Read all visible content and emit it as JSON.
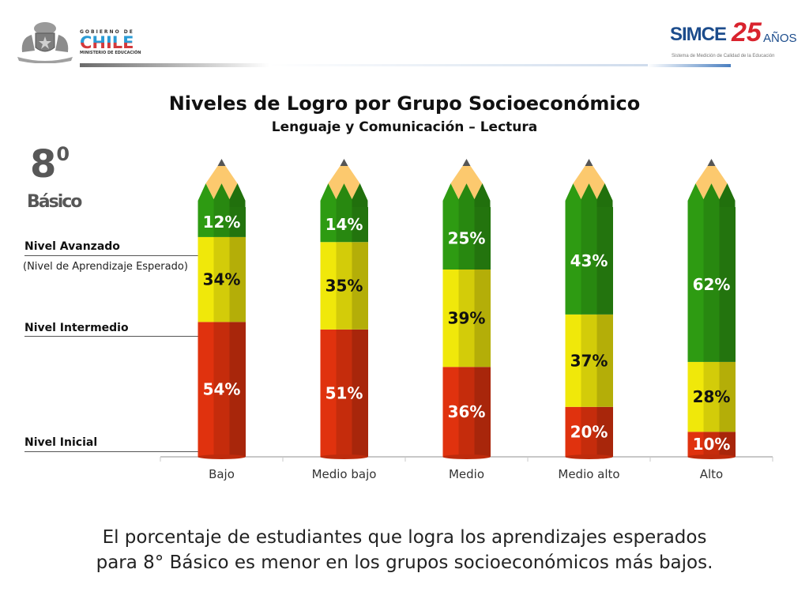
{
  "header": {
    "gov_logo": {
      "line1": "GOBIERNO DE",
      "line2": "CHILE",
      "line3": "MINISTERIO DE EDUCACIÓN",
      "icon": "coat-of-arms-icon"
    },
    "simce_logo": {
      "word": "SIMCE",
      "number": "25",
      "suffix": "AÑOS",
      "tagline": "Sistema de Medición de Calidad de la Educación"
    }
  },
  "grade": {
    "number": "8",
    "superscript": "0",
    "label": "Básico"
  },
  "levels": {
    "advanced": {
      "label": "Nivel Avanzado",
      "note": "(Nivel de Aprendizaje Esperado)"
    },
    "intermediate": {
      "label": "Nivel Intermedio"
    },
    "initial": {
      "label": "Nivel Inicial"
    }
  },
  "caption": {
    "line1": "El porcentaje de estudiantes que logra los aprendizajes esperados",
    "line2": "para 8° Básico es menor en los grupos socioeconómicos más bajos."
  },
  "colors": {
    "inicial": "#e0320e",
    "intermedio": "#f0e80a",
    "avanzado": "#2e9b12",
    "wood": "#fcc96e",
    "lead": "#555555"
  },
  "chart_data": {
    "type": "bar",
    "stacked": true,
    "title": "Niveles de Logro por Grupo Socioeconómico",
    "subtitle": "Lenguaje y Comunicación – Lectura",
    "xlabel": "",
    "ylabel": "",
    "ylim": [
      0,
      100
    ],
    "categories": [
      "Bajo",
      "Medio bajo",
      "Medio",
      "Medio alto",
      "Alto"
    ],
    "series": [
      {
        "name": "Nivel Inicial",
        "values": [
          54,
          51,
          36,
          20,
          10
        ],
        "labels": [
          "54%",
          "51%",
          "36%",
          "20%",
          "10%"
        ]
      },
      {
        "name": "Nivel Intermedio",
        "values": [
          34,
          35,
          39,
          37,
          28
        ],
        "labels": [
          "34%",
          "35%",
          "39%",
          "37%",
          "28%"
        ]
      },
      {
        "name": "Nivel Avanzado",
        "values": [
          12,
          14,
          25,
          43,
          62
        ],
        "labels": [
          "12%",
          "14%",
          "25%",
          "43%",
          "62%"
        ]
      }
    ],
    "grid": false,
    "legend": "left"
  }
}
